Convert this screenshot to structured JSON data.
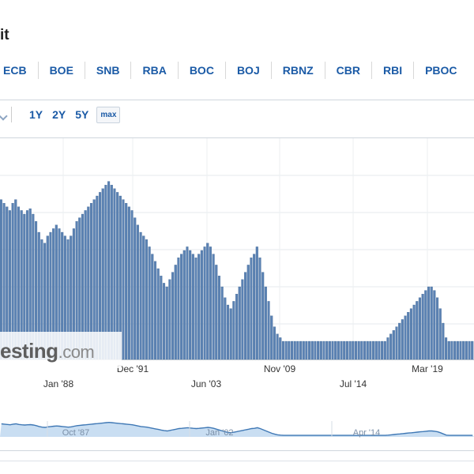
{
  "title": "it",
  "bank_tabs": [
    "ECB",
    "BOE",
    "SNB",
    "RBA",
    "BOC",
    "BOJ",
    "RBNZ",
    "CBR",
    "RBI",
    "PBOC"
  ],
  "range_buttons": [
    "1Y",
    "2Y",
    "5Y",
    "max"
  ],
  "watermark": {
    "prefix": "esting",
    "suffix": ".com"
  },
  "icons": {
    "chart_type": "line-chart-icon"
  },
  "colors": {
    "bar_fill": "#5b82b3",
    "bar_stroke": "#3f6592",
    "nav_fill": "#c9def2",
    "nav_line": "#3f78b5",
    "link": "#1a5aa6"
  },
  "chart_data": {
    "type": "bar",
    "title": "",
    "xlabel": "",
    "ylabel": "",
    "grid": true,
    "x_tick_labels": [
      "Jan '88",
      "Dec '91",
      "Jun '03",
      "Nov '09",
      "Jul '14",
      "Mar '19"
    ],
    "navigator_labels": [
      "Oct '87",
      "Jan '02",
      "Apr '14"
    ],
    "ylim": [
      0,
      100
    ],
    "values": [
      88,
      86,
      84,
      82,
      86,
      88,
      84,
      82,
      80,
      82,
      83,
      80,
      76,
      70,
      66,
      64,
      68,
      70,
      72,
      74,
      72,
      70,
      68,
      66,
      68,
      72,
      76,
      78,
      80,
      82,
      84,
      86,
      88,
      90,
      92,
      94,
      96,
      98,
      96,
      94,
      92,
      90,
      88,
      86,
      84,
      82,
      78,
      74,
      70,
      68,
      66,
      62,
      58,
      54,
      50,
      46,
      42,
      40,
      44,
      48,
      52,
      56,
      58,
      60,
      62,
      60,
      58,
      56,
      58,
      60,
      62,
      64,
      62,
      58,
      52,
      46,
      40,
      34,
      30,
      28,
      32,
      36,
      40,
      44,
      48,
      52,
      56,
      58,
      62,
      56,
      48,
      40,
      32,
      24,
      18,
      14,
      12,
      10,
      10,
      10,
      10,
      10,
      10,
      10,
      10,
      10,
      10,
      10,
      10,
      10,
      10,
      10,
      10,
      10,
      10,
      10,
      10,
      10,
      10,
      10,
      10,
      10,
      10,
      10,
      10,
      10,
      10,
      10,
      10,
      10,
      10,
      10,
      10,
      12,
      14,
      16,
      18,
      20,
      22,
      24,
      26,
      28,
      30,
      32,
      34,
      36,
      38,
      40,
      40,
      38,
      34,
      28,
      20,
      12,
      10,
      10,
      10,
      10,
      10,
      10,
      10,
      10,
      10
    ]
  }
}
